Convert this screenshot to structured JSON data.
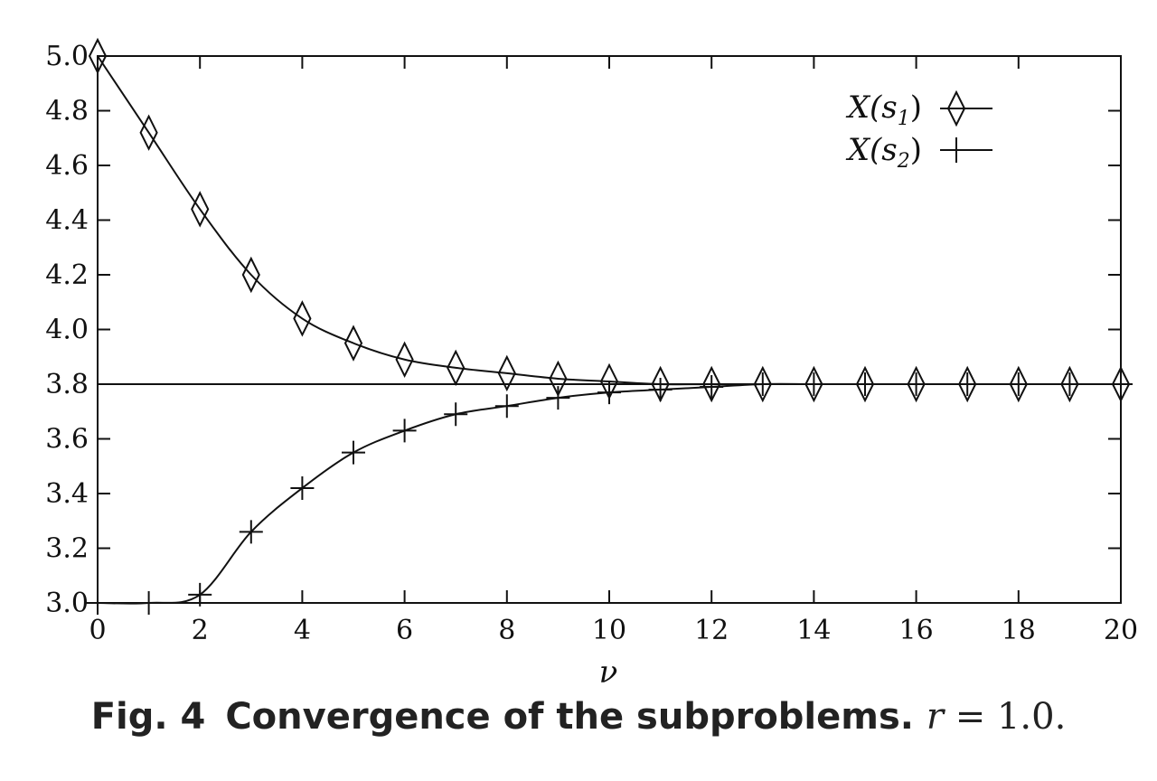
{
  "chart_data": {
    "type": "line",
    "xlabel": "ν",
    "ylabel": "",
    "xlim": [
      0,
      20
    ],
    "ylim": [
      3.0,
      5.0
    ],
    "xticks": [
      0,
      2,
      4,
      6,
      8,
      10,
      12,
      14,
      16,
      18,
      20
    ],
    "yticks": [
      3.0,
      3.2,
      3.4,
      3.6,
      3.8,
      4.0,
      4.2,
      4.4,
      4.6,
      4.8,
      5.0
    ],
    "reference_line_y": 3.8,
    "legend_position": "top-right",
    "series": [
      {
        "name": "X(s1)",
        "name_base": "X(s",
        "name_sub": "1",
        "name_end": ")",
        "marker": "diamond",
        "x": [
          0,
          1,
          2,
          3,
          4,
          5,
          6,
          7,
          8,
          9,
          10,
          11,
          12,
          13,
          14,
          15,
          16,
          17,
          18,
          19,
          20
        ],
        "y": [
          5.0,
          4.72,
          4.44,
          4.2,
          4.04,
          3.95,
          3.89,
          3.86,
          3.84,
          3.82,
          3.81,
          3.8,
          3.8,
          3.8,
          3.8,
          3.8,
          3.8,
          3.8,
          3.8,
          3.8,
          3.8
        ]
      },
      {
        "name": "X(s2)",
        "name_base": "X(s",
        "name_sub": "2",
        "name_end": ")",
        "marker": "plus",
        "x": [
          0,
          1,
          2,
          3,
          4,
          5,
          6,
          7,
          8,
          9,
          10,
          11,
          12,
          13,
          14,
          15,
          16,
          17,
          18,
          19,
          20
        ],
        "y": [
          3.0,
          3.0,
          3.03,
          3.26,
          3.42,
          3.55,
          3.63,
          3.69,
          3.72,
          3.75,
          3.77,
          3.78,
          3.79,
          3.8,
          3.8,
          3.8,
          3.8,
          3.8,
          3.8,
          3.8,
          3.8
        ]
      }
    ]
  },
  "caption": {
    "label": "Fig. 4",
    "text": "Convergence of the subproblems.",
    "math_var": "r",
    "math_rest": " = 1.0."
  }
}
